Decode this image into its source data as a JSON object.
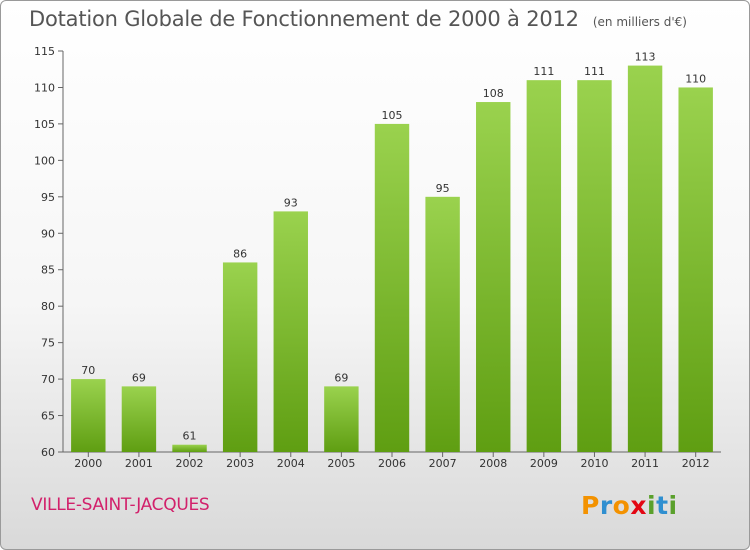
{
  "header": {
    "title": "Dotation Globale de Fonctionnement de 2000 à 2012",
    "unit": "(en milliers d'€)"
  },
  "footer": {
    "commune": "VILLE-SAINT-JACQUES",
    "logo": [
      "P",
      "r",
      "o",
      "x",
      "i",
      "t",
      "i"
    ]
  },
  "colors": {
    "bar_top": "#9ad24e",
    "bar_bottom": "#5f9e12",
    "commune": "#d2216b",
    "logo": [
      "#f39200",
      "#2f8fd0",
      "#f39200",
      "#e30613",
      "#5aa02c",
      "#2f8fd0",
      "#5aa02c"
    ]
  },
  "chart_data": {
    "type": "bar",
    "title": "Dotation Globale de Fonctionnement de 2000 à 2012",
    "subtitle": "(en milliers d'€)",
    "xlabel": "",
    "ylabel": "",
    "categories": [
      "2000",
      "2001",
      "2002",
      "2003",
      "2004",
      "2005",
      "2006",
      "2007",
      "2008",
      "2009",
      "2010",
      "2011",
      "2012"
    ],
    "values": [
      70,
      69,
      61,
      86,
      93,
      69,
      105,
      95,
      108,
      111,
      111,
      113,
      110
    ],
    "ylim": [
      60,
      115
    ],
    "yticks": [
      60,
      65,
      70,
      75,
      80,
      85,
      90,
      95,
      100,
      105,
      110,
      115
    ],
    "grid": false,
    "legend": "none"
  }
}
